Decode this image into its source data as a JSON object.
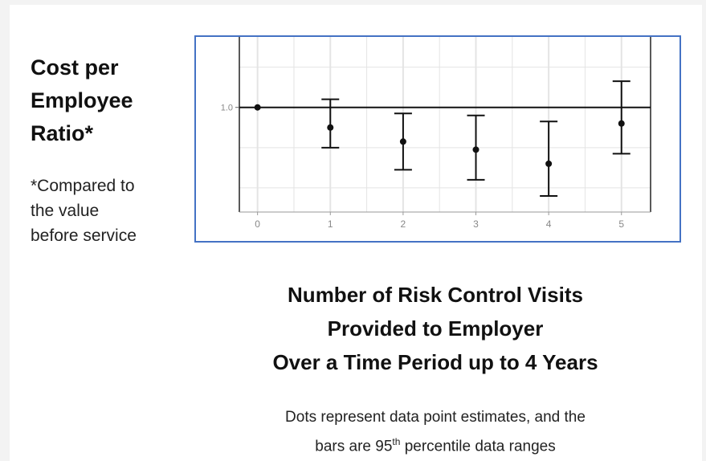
{
  "y_label_lines": [
    "Cost per",
    "Employee",
    "Ratio*"
  ],
  "y_note_lines": [
    "*Compared to",
    "the value",
    "before service"
  ],
  "x_title_lines": [
    "Number of Risk Control Visits",
    "Provided to Employer",
    "Over a Time Period up to 4 Years"
  ],
  "footnote": {
    "line1": "Dots represent data point estimates, and the",
    "line2_before": "bars are 95",
    "line2_sup": "th",
    "line2_after": " percentile data ranges"
  },
  "colors": {
    "frame_border": "#4472c4",
    "marks": "#111111",
    "grid": "#e4e4e4",
    "tick_text": "#888888"
  },
  "chart_data": {
    "type": "scatter",
    "error_bars": true,
    "x": [
      0,
      1,
      2,
      3,
      4,
      5
    ],
    "x_tick_labels": [
      "0",
      "1",
      "2",
      "3",
      "4",
      "5"
    ],
    "y": [
      1.0,
      0.9,
      0.83,
      0.79,
      0.72,
      0.92
    ],
    "y_lower": [
      1.0,
      0.8,
      0.69,
      0.64,
      0.56,
      0.77
    ],
    "y_upper": [
      1.0,
      1.04,
      0.97,
      0.96,
      0.93,
      1.13
    ],
    "y_tick_labels": [
      "1.0"
    ],
    "y_tick_values": [
      1.0
    ],
    "reference_line": 1.0,
    "xlim": [
      -0.25,
      5.4
    ],
    "ylim": [
      0.48,
      1.35
    ],
    "grid": true
  }
}
